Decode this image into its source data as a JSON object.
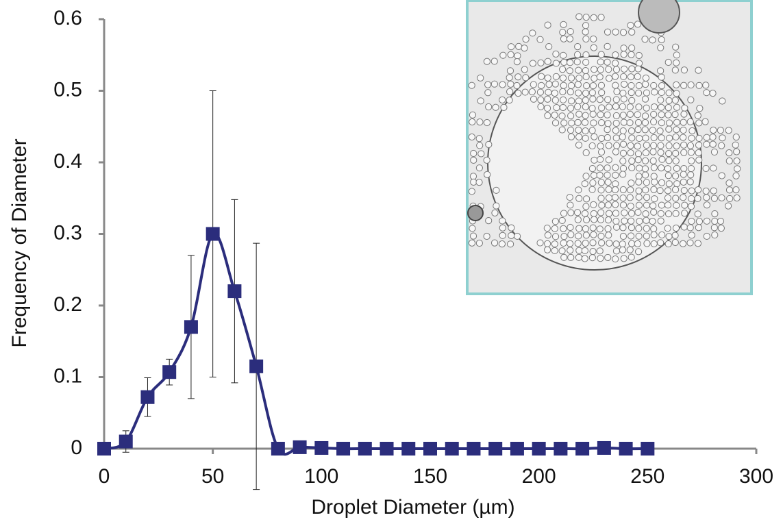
{
  "chart_data": {
    "type": "line",
    "xlabel": "Droplet Diameter (µm)",
    "ylabel": "Frequency of Diameter",
    "x": [
      0,
      10,
      20,
      30,
      40,
      50,
      60,
      70,
      80,
      90,
      100,
      110,
      120,
      130,
      140,
      150,
      160,
      170,
      180,
      190,
      200,
      210,
      220,
      230,
      240,
      250
    ],
    "series": [
      {
        "color": "#2b2d7c",
        "values": [
          0,
          0.01,
          0.072,
          0.107,
          0.17,
          0.3,
          0.22,
          0.115,
          0,
          0.002,
          0.001,
          0,
          0,
          0,
          0,
          0,
          0,
          0,
          0,
          0,
          0,
          0,
          0,
          0.001,
          0,
          0
        ],
        "errors": [
          0,
          0.015,
          0.027,
          0.018,
          0.1,
          0.2,
          0.128,
          0.172,
          0,
          0,
          0,
          0,
          0,
          0,
          0,
          0,
          0,
          0,
          0,
          0,
          0,
          0,
          0,
          0,
          0,
          0
        ]
      }
    ],
    "xlim": [
      0,
      300
    ],
    "xticks": [
      0,
      50,
      100,
      150,
      200,
      250,
      300
    ],
    "ylim": [
      0,
      0.6
    ],
    "yticks": [
      0,
      0.1,
      0.2,
      0.3,
      0.4,
      0.5,
      0.6
    ]
  }
}
